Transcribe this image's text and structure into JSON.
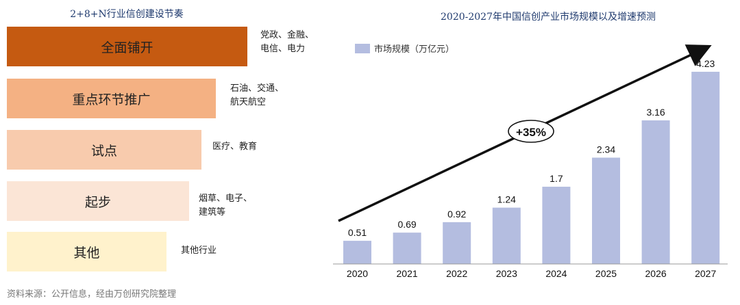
{
  "left_title": "2+8+N行业信创建设节奏",
  "tiers": [
    {
      "label": "全面铺开",
      "desc": [
        "党政、金融、",
        "电信、电力"
      ],
      "color": "#c55a11"
    },
    {
      "label": "重点环节推广",
      "desc": [
        "石油、交通、",
        "航天航空"
      ],
      "color": "#f4b183"
    },
    {
      "label": "试点",
      "desc": [
        "医疗、教育"
      ],
      "color": "#f8cbad"
    },
    {
      "label": "起步",
      "desc": [
        "烟草、电子、",
        "建筑等"
      ],
      "color": "#fbe5d6"
    },
    {
      "label": "其他",
      "desc": [
        "其他行业"
      ],
      "color": "#fff2cc"
    }
  ],
  "source": "资料来源：公开信息，经由万创研究院整理",
  "chart_data": {
    "type": "bar",
    "title": "2020-2027年中国信创产业市场规模以及增速预测",
    "categories": [
      "2020",
      "2021",
      "2022",
      "2023",
      "2024",
      "2025",
      "2026",
      "2027"
    ],
    "series": [
      {
        "name": "市场规模（万亿元）",
        "values": [
          0.51,
          0.69,
          0.92,
          1.24,
          1.7,
          2.34,
          3.16,
          4.23
        ],
        "color": "#b4bde0"
      }
    ],
    "data_labels": [
      "0.51",
      "0.69",
      "0.92",
      "1.24",
      "1.7",
      "2.34",
      "3.16",
      "4.23"
    ],
    "ylim": [
      0,
      4.5
    ],
    "legend_position": "top-left",
    "grid": false,
    "annotation": "+35%"
  }
}
